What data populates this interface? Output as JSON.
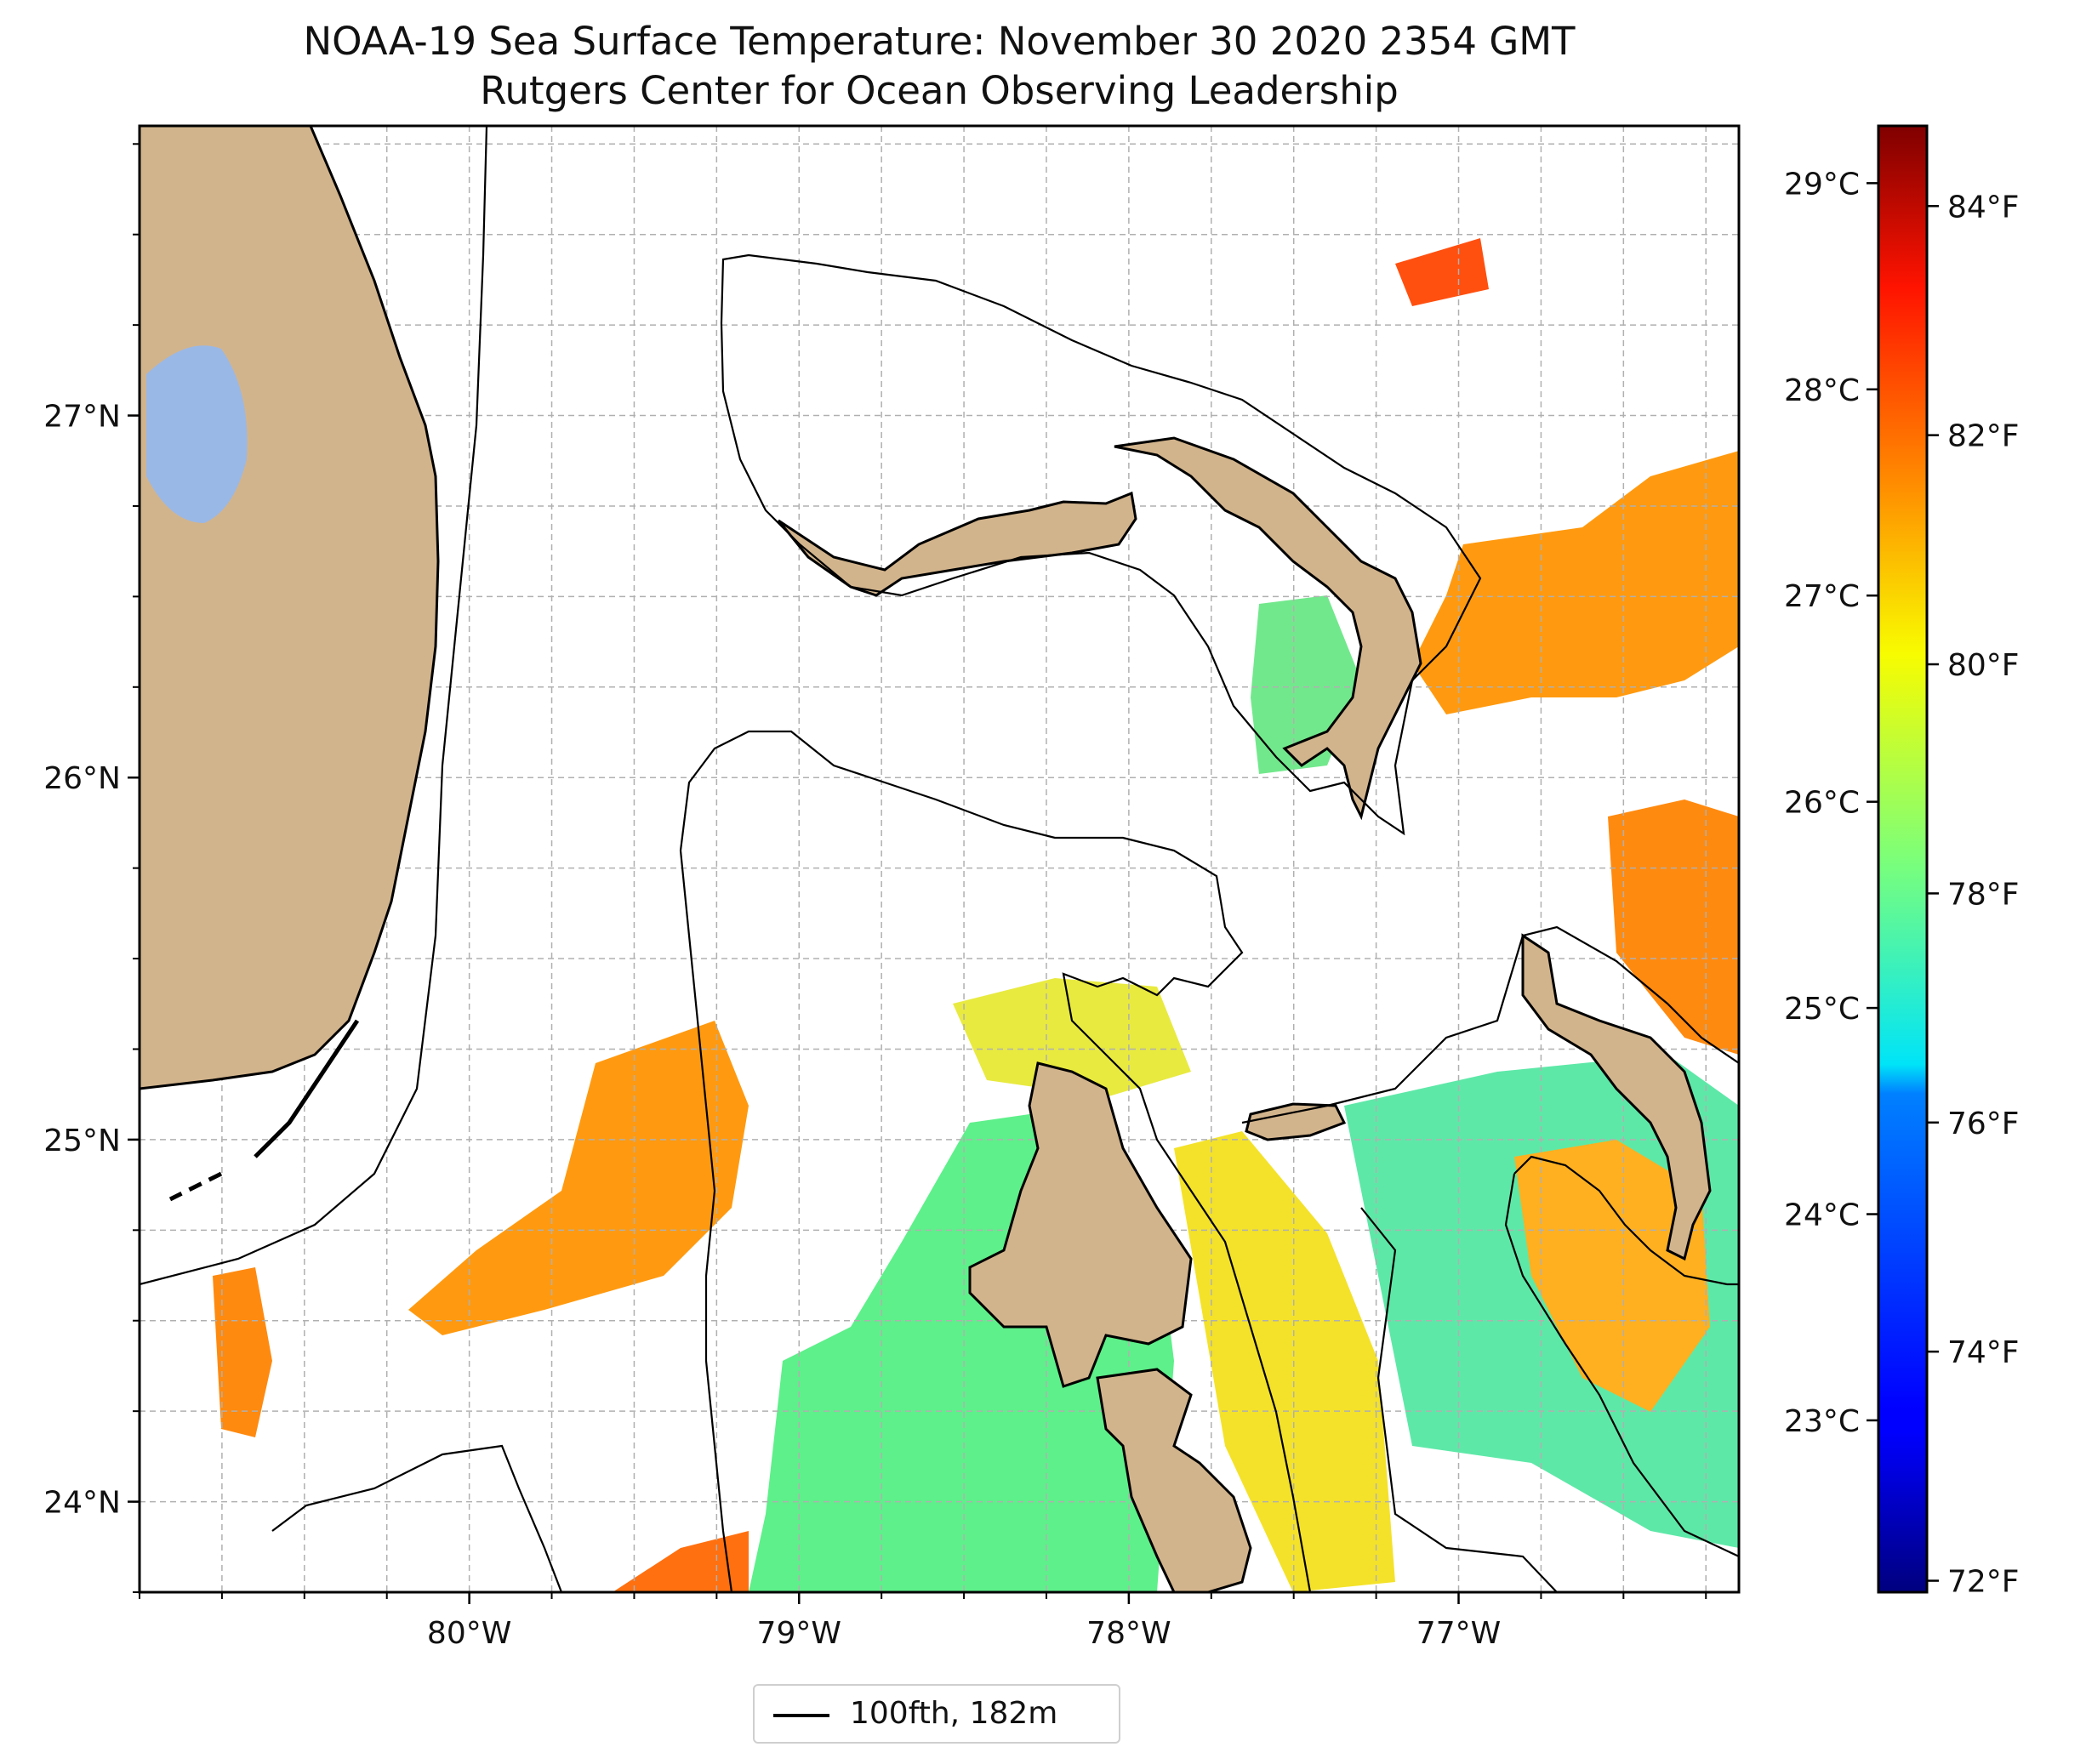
{
  "title": "NOAA-19 Sea Surface Temperature: November 30 2020 2354 GMT",
  "subtitle": "Rutgers Center for Ocean Observing Leadership",
  "map": {
    "lon_range": [
      -81.0,
      -76.15
    ],
    "lat_range": [
      23.75,
      27.8
    ],
    "lon_ticks": [
      {
        "value": -80,
        "label": "80°W"
      },
      {
        "value": -79,
        "label": "79°W"
      },
      {
        "value": -78,
        "label": "78°W"
      },
      {
        "value": -77,
        "label": "77°W"
      }
    ],
    "lat_ticks": [
      {
        "value": 27,
        "label": "27°N"
      },
      {
        "value": 26,
        "label": "26°N"
      },
      {
        "value": 25,
        "label": "25°N"
      },
      {
        "value": 24,
        "label": "24°N"
      }
    ],
    "gridlines": true,
    "colors": {
      "land": "#d2b48c",
      "lake": "#9ab8e6",
      "contour": "#000000",
      "grid": "#b0b0b0"
    }
  },
  "colorbar": {
    "colormap": "jet",
    "range_f": [
      71.9,
      84.7
    ],
    "ticks_f": [
      {
        "value": 72,
        "label": "72°F"
      },
      {
        "value": 74,
        "label": "74°F"
      },
      {
        "value": 76,
        "label": "76°F"
      },
      {
        "value": 78,
        "label": "78°F"
      },
      {
        "value": 80,
        "label": "80°F"
      },
      {
        "value": 82,
        "label": "82°F"
      },
      {
        "value": 84,
        "label": "84°F"
      }
    ],
    "ticks_c": [
      {
        "value": 23,
        "label": "23°C"
      },
      {
        "value": 24,
        "label": "24°C"
      },
      {
        "value": 25,
        "label": "25°C"
      },
      {
        "value": 26,
        "label": "26°C"
      },
      {
        "value": 27,
        "label": "27°C"
      },
      {
        "value": 28,
        "label": "28°C"
      },
      {
        "value": 29,
        "label": "29°C"
      }
    ]
  },
  "legend": {
    "label": "100fth, 182m",
    "placement": "bottom-center"
  }
}
